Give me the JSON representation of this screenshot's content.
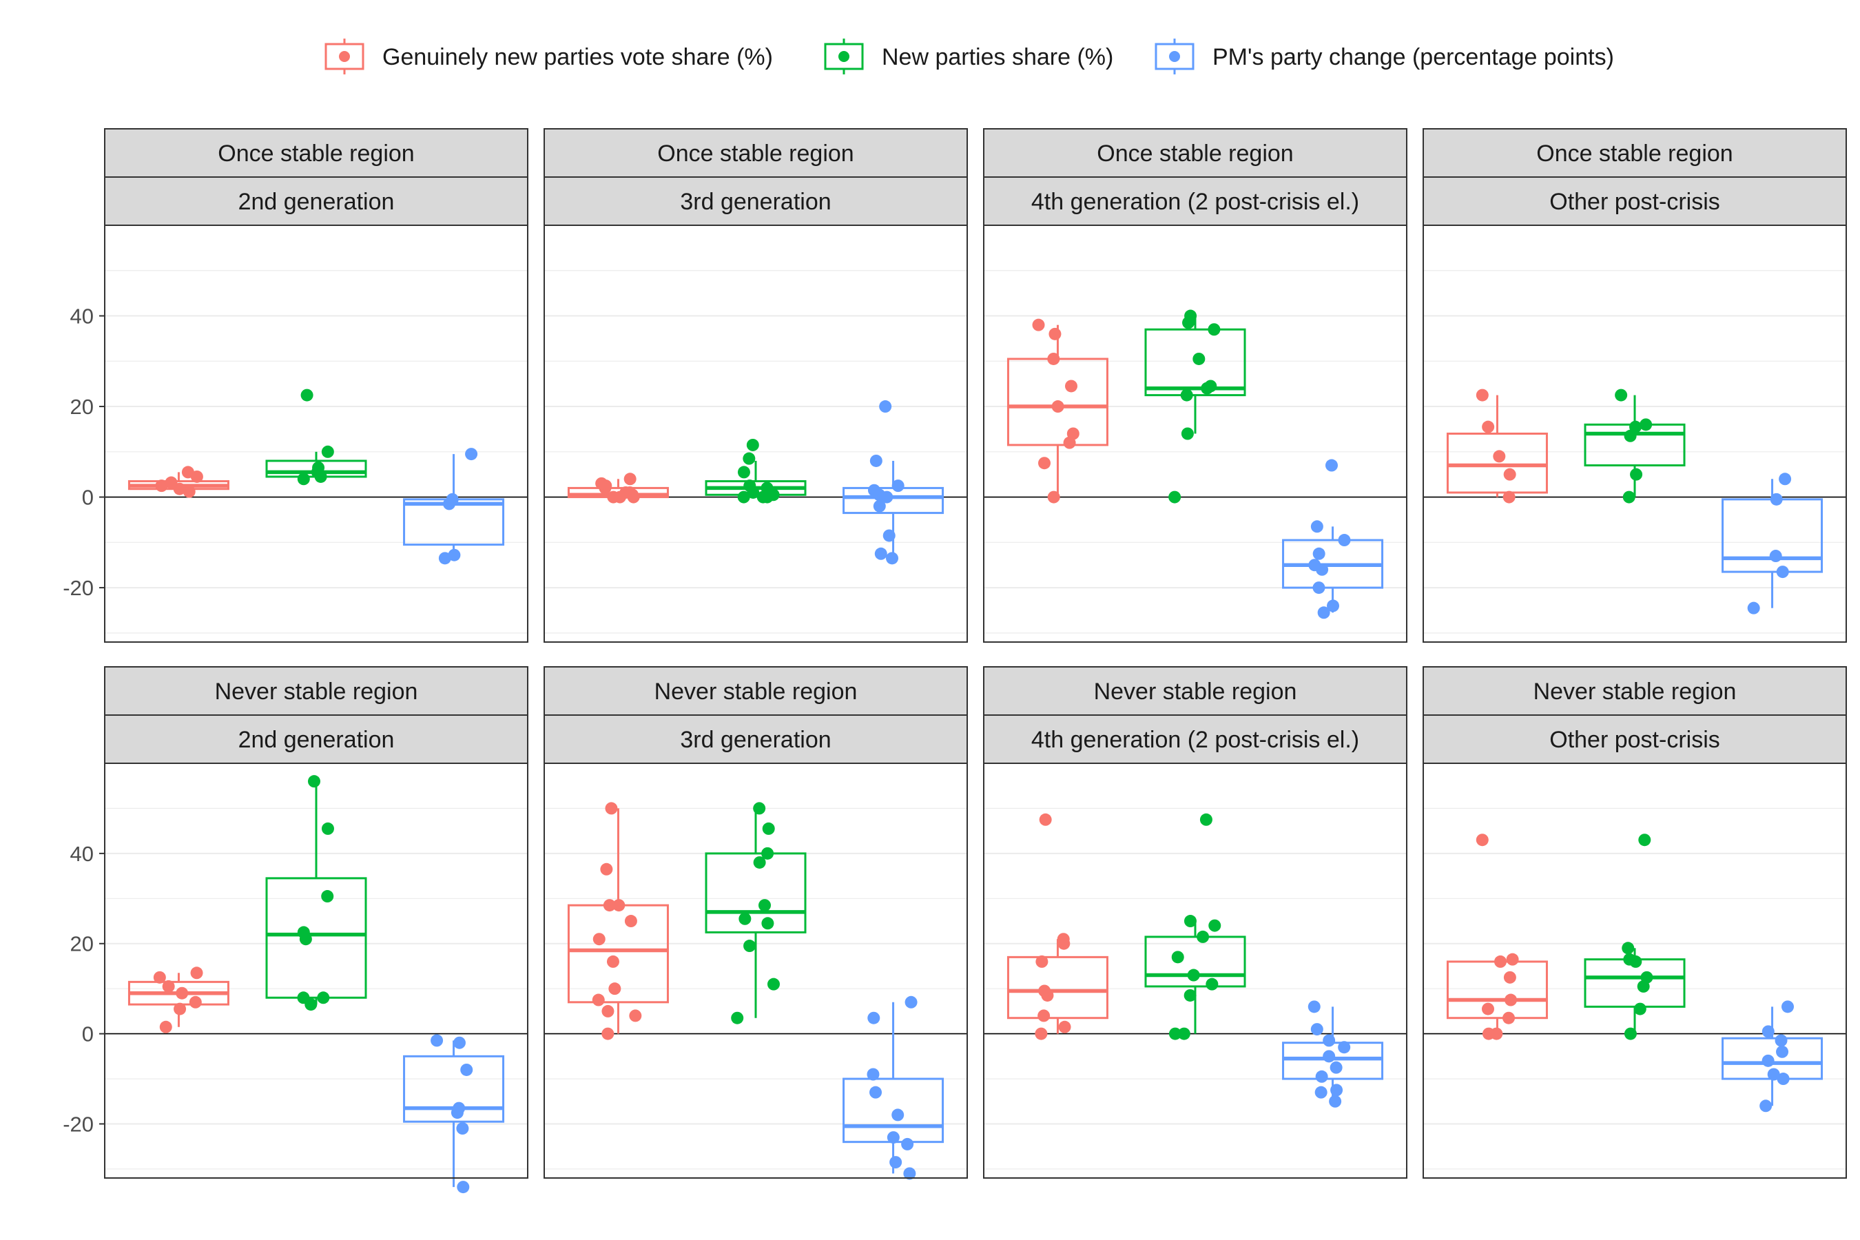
{
  "colors": {
    "genuinely_new": "#F8766D",
    "new_parties": "#00BA38",
    "pm_change": "#619CFF",
    "strip_fill": "#D9D9D9",
    "grid": "#EBEBEB",
    "border": "#333333"
  },
  "chart_data": {
    "type": "box",
    "legend": {
      "position": "top",
      "entries": [
        {
          "key": "genuinely_new",
          "label": "Genuinely new parties vote share (%)"
        },
        {
          "key": "new_parties",
          "label": "New parties share (%)"
        },
        {
          "key": "pm_change",
          "label": "PM's party change (percentage points)"
        }
      ]
    },
    "facet_rows": [
      "Once stable region",
      "Never stable region"
    ],
    "facet_cols": [
      "2nd generation",
      "3rd generation",
      "4th generation (2 post-crisis el.)",
      "Other post-crisis"
    ],
    "y_axis": {
      "ylim": [
        -32,
        60
      ],
      "ticks": [
        -20,
        0,
        20,
        40
      ],
      "grid": true,
      "zero_line": true
    },
    "panels": [
      {
        "row": "Once stable region",
        "col": "2nd generation",
        "series": [
          {
            "key": "genuinely_new",
            "box": {
              "min": 1,
              "q1": 1.8,
              "median": 2.5,
              "q3": 3.5,
              "max": 5.5
            },
            "points": [
              1.2,
              1.8,
              2.5,
              3.2,
              4.5,
              5.5
            ]
          },
          {
            "key": "new_parties",
            "box": {
              "min": 4,
              "q1": 4.5,
              "median": 5.5,
              "q3": 8,
              "max": 10
            },
            "points": [
              4,
              4.5,
              5.5,
              6.5,
              10,
              22.5
            ]
          },
          {
            "key": "pm_change",
            "box": {
              "min": -13.5,
              "q1": -10.5,
              "median": -1.5,
              "q3": -0.5,
              "max": 9.5
            },
            "points": [
              -13.5,
              -12.8,
              -1.5,
              -0.5,
              9.5
            ]
          }
        ]
      },
      {
        "row": "Once stable region",
        "col": "3rd generation",
        "series": [
          {
            "key": "genuinely_new",
            "box": {
              "min": 0,
              "q1": 0,
              "median": 0.5,
              "q3": 2,
              "max": 4
            },
            "points": [
              0,
              0,
              0,
              0.5,
              1,
              1,
              2,
              2.5,
              3,
              4
            ]
          },
          {
            "key": "new_parties",
            "box": {
              "min": 0,
              "q1": 0.5,
              "median": 2,
              "q3": 3.5,
              "max": 8
            },
            "points": [
              0,
              0,
              0,
              0.5,
              1,
              2,
              2.5,
              5.5,
              8.5,
              11.5
            ]
          },
          {
            "key": "pm_change",
            "box": {
              "min": -13.5,
              "q1": -3.5,
              "median": 0,
              "q3": 2,
              "max": 8
            },
            "points": [
              -13.5,
              -12.5,
              -8.5,
              -2,
              0,
              0.5,
              1.5,
              2.5,
              8,
              20
            ]
          }
        ]
      },
      {
        "row": "Once stable region",
        "col": "4th generation (2 post-crisis el.)",
        "series": [
          {
            "key": "genuinely_new",
            "box": {
              "min": 0,
              "q1": 11.5,
              "median": 20,
              "q3": 30.5,
              "max": 38
            },
            "points": [
              0,
              7.5,
              12,
              14,
              20,
              24.5,
              30.5,
              36,
              38
            ]
          },
          {
            "key": "new_parties",
            "box": {
              "min": 14,
              "q1": 22.5,
              "median": 24,
              "q3": 37,
              "max": 40
            },
            "points": [
              0,
              14,
              22.5,
              24,
              24.5,
              30.5,
              37,
              38.5,
              40
            ]
          },
          {
            "key": "pm_change",
            "box": {
              "min": -25.5,
              "q1": -20,
              "median": -15,
              "q3": -9.5,
              "max": -6.5
            },
            "points": [
              -25.5,
              -24,
              -20,
              -16,
              -15,
              -12.5,
              -9.5,
              -6.5,
              7
            ]
          }
        ]
      },
      {
        "row": "Once stable region",
        "col": "Other post-crisis",
        "series": [
          {
            "key": "genuinely_new",
            "box": {
              "min": 0,
              "q1": 1,
              "median": 7,
              "q3": 14,
              "max": 22.5
            },
            "points": [
              0,
              5,
              9,
              15.5,
              22.5
            ]
          },
          {
            "key": "new_parties",
            "box": {
              "min": 0,
              "q1": 7,
              "median": 14,
              "q3": 16,
              "max": 22.5
            },
            "points": [
              0,
              5,
              13.5,
              15.5,
              16,
              22.5
            ]
          },
          {
            "key": "pm_change",
            "box": {
              "min": -24.5,
              "q1": -16.5,
              "median": -13.5,
              "q3": -0.5,
              "max": 4
            },
            "points": [
              -24.5,
              -16.5,
              -13,
              -0.5,
              4
            ]
          }
        ]
      },
      {
        "row": "Never stable region",
        "col": "2nd generation",
        "series": [
          {
            "key": "genuinely_new",
            "box": {
              "min": 1.5,
              "q1": 6.5,
              "median": 9,
              "q3": 11.5,
              "max": 13.5
            },
            "points": [
              1.5,
              5.5,
              7,
              9,
              10.5,
              12.5,
              13.5
            ]
          },
          {
            "key": "new_parties",
            "box": {
              "min": 6.5,
              "q1": 8,
              "median": 22,
              "q3": 34.5,
              "max": 56
            },
            "points": [
              6.5,
              8,
              8,
              21,
              22.5,
              30.5,
              45.5,
              56
            ]
          },
          {
            "key": "pm_change",
            "box": {
              "min": -34,
              "q1": -19.5,
              "median": -16.5,
              "q3": -5,
              "max": -1.5
            },
            "points": [
              -34,
              -21,
              -17.5,
              -16.5,
              -8,
              -2,
              -1.5
            ]
          }
        ]
      },
      {
        "row": "Never stable region",
        "col": "3rd generation",
        "series": [
          {
            "key": "genuinely_new",
            "box": {
              "min": 0,
              "q1": 7,
              "median": 18.5,
              "q3": 28.5,
              "max": 50
            },
            "points": [
              0,
              4,
              5,
              7.5,
              10,
              16,
              21,
              25,
              28.5,
              28.5,
              36.5,
              50
            ]
          },
          {
            "key": "new_parties",
            "box": {
              "min": 3.5,
              "q1": 22.5,
              "median": 27,
              "q3": 40,
              "max": 50
            },
            "points": [
              3.5,
              11,
              19.5,
              24.5,
              25.5,
              28.5,
              38,
              40,
              45.5,
              50
            ]
          },
          {
            "key": "pm_change",
            "box": {
              "min": -31,
              "q1": -24,
              "median": -20.5,
              "q3": -10,
              "max": 7
            },
            "points": [
              -31,
              -28.5,
              -24.5,
              -23,
              -18,
              -13,
              -9,
              3.5,
              7
            ]
          }
        ]
      },
      {
        "row": "Never stable region",
        "col": "4th generation (2 post-crisis el.)",
        "series": [
          {
            "key": "genuinely_new",
            "box": {
              "min": 0,
              "q1": 3.5,
              "median": 9.5,
              "q3": 17,
              "max": 21
            },
            "points": [
              0,
              1.5,
              4,
              8.5,
              9.5,
              16,
              20,
              21,
              47.5
            ]
          },
          {
            "key": "new_parties",
            "box": {
              "min": 0,
              "q1": 10.5,
              "median": 13,
              "q3": 21.5,
              "max": 25
            },
            "points": [
              0,
              0,
              8.5,
              11,
              13,
              17,
              21.5,
              24,
              25,
              47.5
            ]
          },
          {
            "key": "pm_change",
            "box": {
              "min": -15,
              "q1": -10,
              "median": -5.5,
              "q3": -2,
              "max": 6
            },
            "points": [
              -15,
              -13,
              -12.5,
              -9.5,
              -7.5,
              -5,
              -3,
              -1.5,
              1,
              6
            ]
          }
        ]
      },
      {
        "row": "Never stable region",
        "col": "Other post-crisis",
        "series": [
          {
            "key": "genuinely_new",
            "box": {
              "min": 0,
              "q1": 3.5,
              "median": 7.5,
              "q3": 16,
              "max": 16.5
            },
            "points": [
              0,
              0,
              3.5,
              5.5,
              7.5,
              12.5,
              16,
              16.5,
              43
            ]
          },
          {
            "key": "new_parties",
            "box": {
              "min": 0,
              "q1": 6,
              "median": 12.5,
              "q3": 16.5,
              "max": 19
            },
            "points": [
              0,
              5.5,
              10.5,
              12.5,
              16,
              16.5,
              19,
              43
            ]
          },
          {
            "key": "pm_change",
            "box": {
              "min": -16,
              "q1": -10,
              "median": -6.5,
              "q3": -1,
              "max": 6
            },
            "points": [
              -16,
              -10,
              -9,
              -6,
              -4,
              -1.5,
              0.5,
              6
            ]
          }
        ]
      }
    ]
  }
}
